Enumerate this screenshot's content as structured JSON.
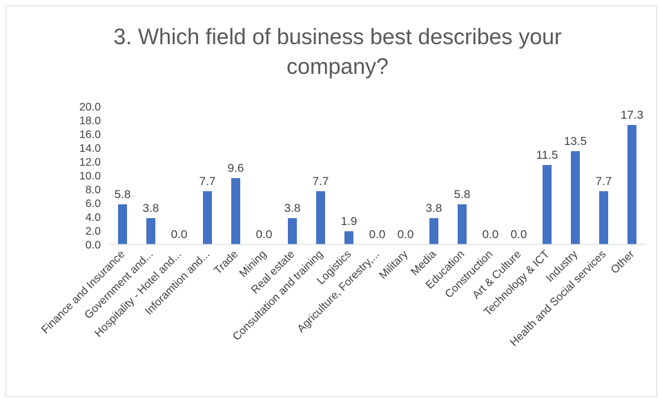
{
  "chart_data": {
    "type": "bar",
    "title": "3. Which field of business best describes your company?",
    "title_lines": [
      "3. Which field of business best describes your",
      "company?"
    ],
    "categories": [
      "Finance and Insurance",
      "Government and...",
      "Hospitality - Hotel and...",
      "Inforamtion and...",
      "Trade",
      "Mining",
      "Real estate",
      "Consultation and training",
      "Logistics",
      "Agriculture, Forestry,...",
      "Military",
      "Media",
      "Education",
      "Construction",
      "Art & Culture",
      "Technology & ICT",
      "Industry",
      "Health and Social services",
      "Other"
    ],
    "values": [
      5.8,
      3.8,
      0.0,
      7.7,
      9.6,
      0.0,
      3.8,
      7.7,
      1.9,
      0.0,
      0.0,
      3.8,
      5.8,
      0.0,
      0.0,
      11.5,
      13.5,
      7.7,
      17.3
    ],
    "data_labels": [
      "5.8",
      "3.8",
      "0.0",
      "7.7",
      "9.6",
      "0.0",
      "3.8",
      "7.7",
      "1.9",
      "0.0",
      "0.0",
      "3.8",
      "5.8",
      "0.0",
      "0.0",
      "11.5",
      "13.5",
      "7.7",
      "17.3"
    ],
    "y_ticks": [
      "0.0",
      "2.0",
      "4.0",
      "6.0",
      "8.0",
      "10.0",
      "12.0",
      "14.0",
      "16.0",
      "18.0",
      "20.0"
    ],
    "ylim": [
      0,
      20
    ],
    "xlabel": "",
    "ylabel": "",
    "grid": false,
    "legend": "none",
    "colors": {
      "bar": "#4472c4",
      "axis": "#d9d9d9",
      "text": "#404040",
      "title": "#595959"
    }
  }
}
